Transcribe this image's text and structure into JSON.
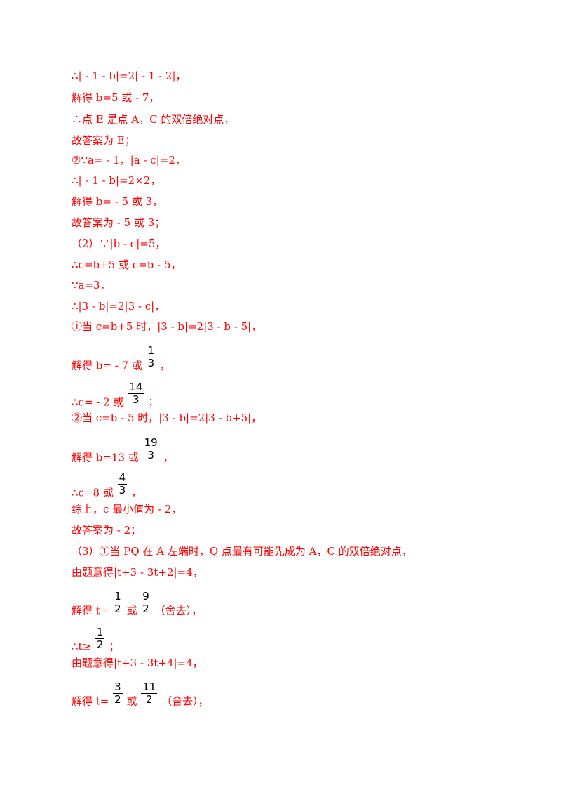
{
  "lines": [
    {
      "text": "∴| - 1 - b|=2| - 1 - 2|，"
    },
    {
      "text": "解得 b=5 或 - 7，"
    },
    {
      "text": "∴点 E 是点 A，C 的双倍绝对点，"
    },
    {
      "text": "故答案为 E；"
    },
    {
      "text": "②∵a= - 1，|a - c|=2，"
    },
    {
      "text": "∴| - 1 - b|=2×2，"
    },
    {
      "text": "解得 b= - 5 或 3，"
    },
    {
      "text": "故答案为 - 5 或 3；"
    },
    {
      "text": "（2）∵|b - c|=5，"
    },
    {
      "text": "∴c=b+5 或 c=b - 5，"
    },
    {
      "text": "∵a=3，"
    },
    {
      "text": "∴|3 - b|=2|3 - c|，"
    },
    {
      "text": "①当 c=b+5 时，|3 - b|=2|3 - b - 5|，"
    },
    {
      "before": "解得 b= - 7 或",
      "frac": {
        "num": "1",
        "den": "3",
        "neg": true
      },
      "after": "，"
    },
    {
      "before": "∴c= - 2 或",
      "frac": {
        "num": "14",
        "den": "3"
      },
      "after": "；"
    },
    {
      "text": "②当 c=b - 5 时，|3 - b|=2|3 - b+5|，"
    },
    {
      "before": "解得 b=13 或",
      "frac": {
        "num": "19",
        "den": "3"
      },
      "after": "，"
    },
    {
      "before": "∴c=8 或",
      "frac": {
        "num": "4",
        "den": "3"
      },
      "after": "，"
    },
    {
      "text": "综上，c 最小值为 - 2，"
    },
    {
      "text": "故答案为 - 2；"
    },
    {
      "text": "（3）①当 PQ 在 A 左端时，Q 点最有可能先成为 A，C 的双倍绝对点，"
    },
    {
      "text": "由题意得|t+3 - 3t+2|=4，"
    },
    {
      "before": "解得 t=",
      "frac": {
        "num": "1",
        "den": "2"
      },
      "mid": "或",
      "frac2": {
        "num": "9",
        "den": "2"
      },
      "after": "（舍去），"
    },
    {
      "before": "∴t≥",
      "frac": {
        "num": "1",
        "den": "2"
      },
      "after": "；"
    },
    {
      "text": "由题意得|t+3 - 3t+4|=4，"
    },
    {
      "before": "解得 t=",
      "frac": {
        "num": "3",
        "den": "2"
      },
      "mid": "或",
      "frac2": {
        "num": "11",
        "den": "2"
      },
      "after": "（舍去），"
    }
  ]
}
